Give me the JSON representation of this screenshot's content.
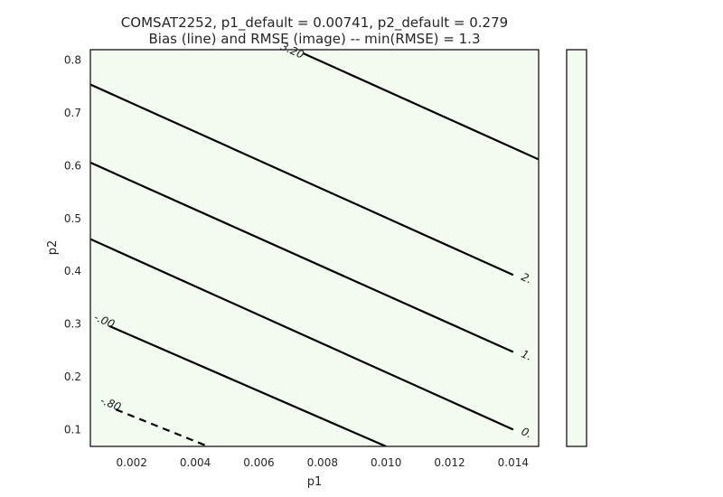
{
  "chart_data": {
    "type": "contour",
    "title_line1": "COMSAT2252, p1_default = 0.00741, p2_default = 0.279",
    "title_line2": "Bias (line) and RMSE (image) -- min(RMSE) = 1.3",
    "xlabel": "p1",
    "ylabel": "p2",
    "xlim": [
      0.0007,
      0.0148
    ],
    "ylim": [
      0.068,
      0.82
    ],
    "xticks": [
      0.002,
      0.004,
      0.006,
      0.008,
      0.01,
      0.012,
      0.014
    ],
    "xtick_labels": [
      "0.002",
      "0.004",
      "0.006",
      "0.008",
      "0.010",
      "0.012",
      "0.014"
    ],
    "yticks": [
      0.1,
      0.2,
      0.3,
      0.4,
      0.5,
      0.6,
      0.7,
      0.8
    ],
    "ytick_labels": [
      "0.1",
      "0.2",
      "0.3",
      "0.4",
      "0.5",
      "0.6",
      "0.7",
      "0.8"
    ],
    "image_color": "#f3faf0",
    "line_color": "#000000",
    "colorbar": true,
    "contours": [
      {
        "label": "-.80",
        "dashed": true,
        "points": [
          [
            0.0015,
            0.138
          ],
          [
            0.0044,
            0.068
          ]
        ]
      },
      {
        "label": "-.00",
        "dashed": false,
        "points": [
          [
            0.0013,
            0.296
          ],
          [
            0.01,
            0.068
          ]
        ]
      },
      {
        "label": "0.",
        "dashed": false,
        "points": [
          [
            0.0007,
            0.461
          ],
          [
            0.014,
            0.1
          ]
        ]
      },
      {
        "label": "1.",
        "dashed": false,
        "points": [
          [
            0.0007,
            0.606
          ],
          [
            0.014,
            0.247
          ]
        ]
      },
      {
        "label": "2.",
        "dashed": false,
        "points": [
          [
            0.0007,
            0.754
          ],
          [
            0.014,
            0.393
          ]
        ]
      },
      {
        "label": "3.20",
        "dashed": false,
        "points": [
          [
            0.0074,
            0.813
          ],
          [
            0.0148,
            0.612
          ]
        ]
      }
    ]
  }
}
